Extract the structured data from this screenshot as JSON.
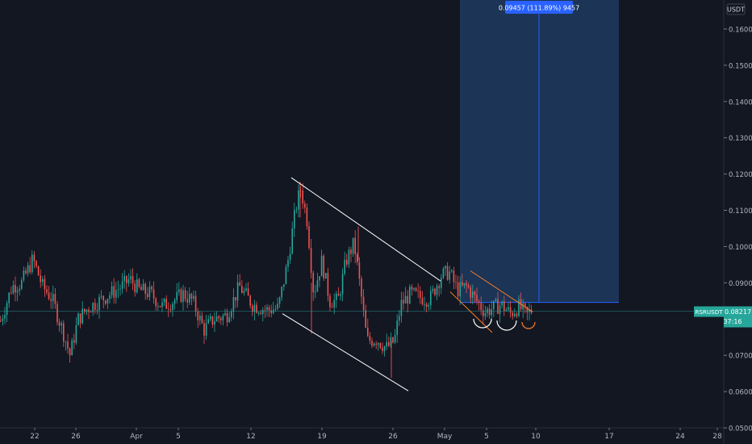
{
  "chart_data": {
    "type": "candlestick",
    "symbol": "RSRUSDT",
    "currency_label": "USDT",
    "last_price_label": "0.08217",
    "countdown_label": "37:16",
    "ylim": [
      0.05,
      0.168
    ],
    "y_ticks": [
      "0.16000",
      "0.15000",
      "0.14000",
      "0.13000",
      "0.12000",
      "0.11000",
      "0.10000",
      "0.09000",
      "0.08000",
      "0.07000",
      "0.06000",
      "0.05000"
    ],
    "x_ticks": [
      "22",
      "26",
      "Apr",
      "5",
      "12",
      "19",
      "26",
      "May",
      "5",
      "10",
      "17",
      "24",
      "28"
    ],
    "measure_label": "0.09457 (111.89%) 9457",
    "colors": {
      "background": "#131722",
      "up": "#26a69a",
      "down": "#ef5350",
      "target_box": "#1e3a5f",
      "accent_blue": "#2962ff",
      "trendline_white": "#ffffff",
      "trendline_orange": "#ff7f27"
    },
    "key_levels": {
      "entry": 0.0846,
      "last": 0.08217,
      "high_peak": 0.1179,
      "low_trough": 0.0638
    }
  }
}
